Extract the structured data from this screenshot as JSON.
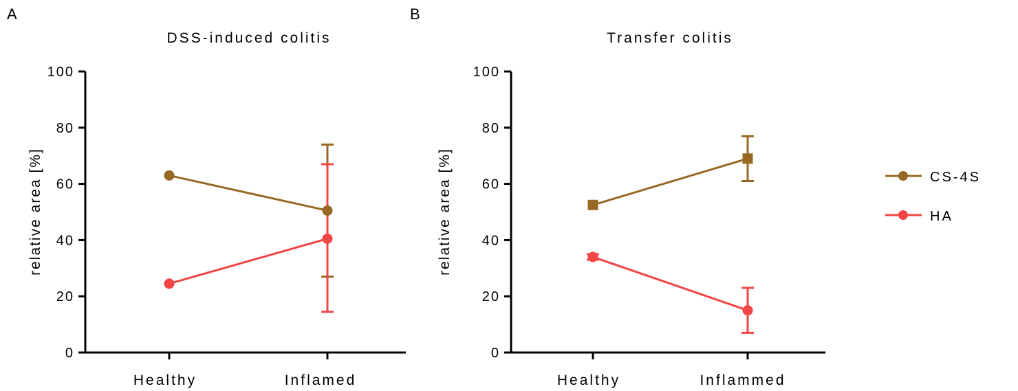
{
  "figure": {
    "panel_letters": [
      "A",
      "B"
    ],
    "legend": [
      {
        "label": "CS-4S",
        "color": "#976823",
        "marker": "circle"
      },
      {
        "label": "HA",
        "color": "#f24545",
        "marker": "circle"
      }
    ]
  },
  "chart_data": [
    {
      "type": "line",
      "title": "DSS-induced colitis",
      "xlabel": "",
      "ylabel": "relative area [%]",
      "categories": [
        "Healthy",
        "Inflamed"
      ],
      "ylim": [
        0,
        100
      ],
      "yticks": [
        0,
        20,
        40,
        60,
        80,
        100
      ],
      "grid": false,
      "series": [
        {
          "name": "CS-4S",
          "color": "#976823",
          "marker": "circle",
          "values": [
            63,
            50.5
          ],
          "error_low": [
            null,
            27
          ],
          "error_high": [
            null,
            74
          ]
        },
        {
          "name": "HA",
          "color": "#f24545",
          "marker": "circle",
          "values": [
            24.5,
            40.5
          ],
          "error_low": [
            null,
            14.5
          ],
          "error_high": [
            null,
            67
          ]
        }
      ]
    },
    {
      "type": "line",
      "title": "Transfer colitis",
      "xlabel": "",
      "ylabel": "relative area [%]",
      "categories": [
        "Healthy",
        "Inflammed"
      ],
      "ylim": [
        0,
        100
      ],
      "yticks": [
        0,
        20,
        40,
        60,
        80,
        100
      ],
      "grid": false,
      "legend_position": "right",
      "series": [
        {
          "name": "CS-4S",
          "color": "#976823",
          "marker": "square",
          "values": [
            52.5,
            69
          ],
          "error_low": [
            null,
            61
          ],
          "error_high": [
            null,
            77
          ]
        },
        {
          "name": "HA",
          "color": "#f24545",
          "marker": "circle",
          "values": [
            34,
            15
          ],
          "error_low": [
            33,
            7
          ],
          "error_high": [
            35,
            23
          ]
        }
      ]
    }
  ]
}
